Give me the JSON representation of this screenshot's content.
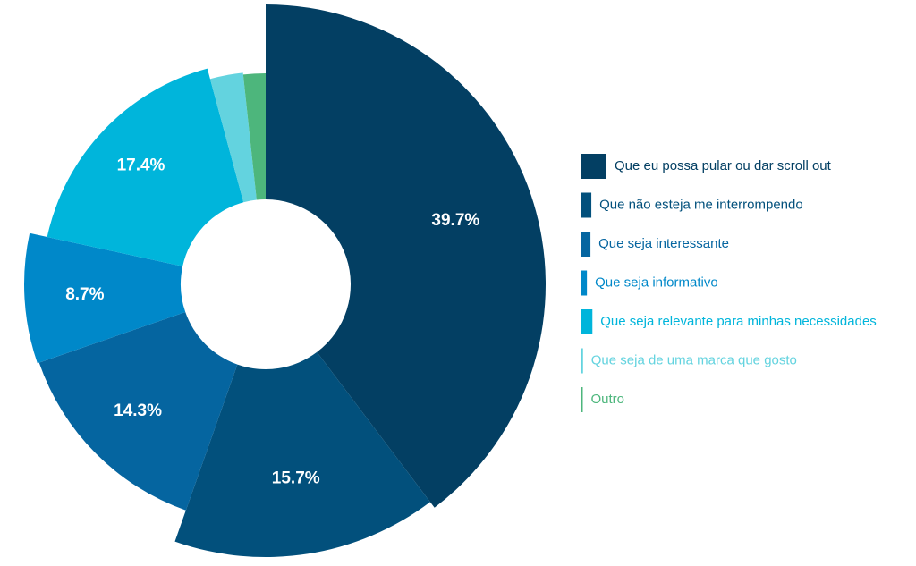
{
  "chart_data": {
    "type": "pie",
    "categories": [
      "Que eu possa pular ou dar scroll out",
      "Que não esteja me interrompendo",
      "Que seja interessante",
      "Que seja informativo",
      "Que seja relevante para minhas necessidades",
      "Que seja de uma marca que gosto",
      "Outro"
    ],
    "values": [
      39.7,
      15.7,
      14.3,
      8.7,
      17.4,
      2.5,
      1.7
    ],
    "value_labels": [
      "39.7%",
      "15.7%",
      "14.3%",
      "8.7%",
      "17.4%",
      null,
      null
    ],
    "colors": [
      "#033f63",
      "#02507c",
      "#0565a0",
      "#0088c9",
      "#00b5db",
      "#63d3df",
      "#4db67c"
    ]
  }
}
